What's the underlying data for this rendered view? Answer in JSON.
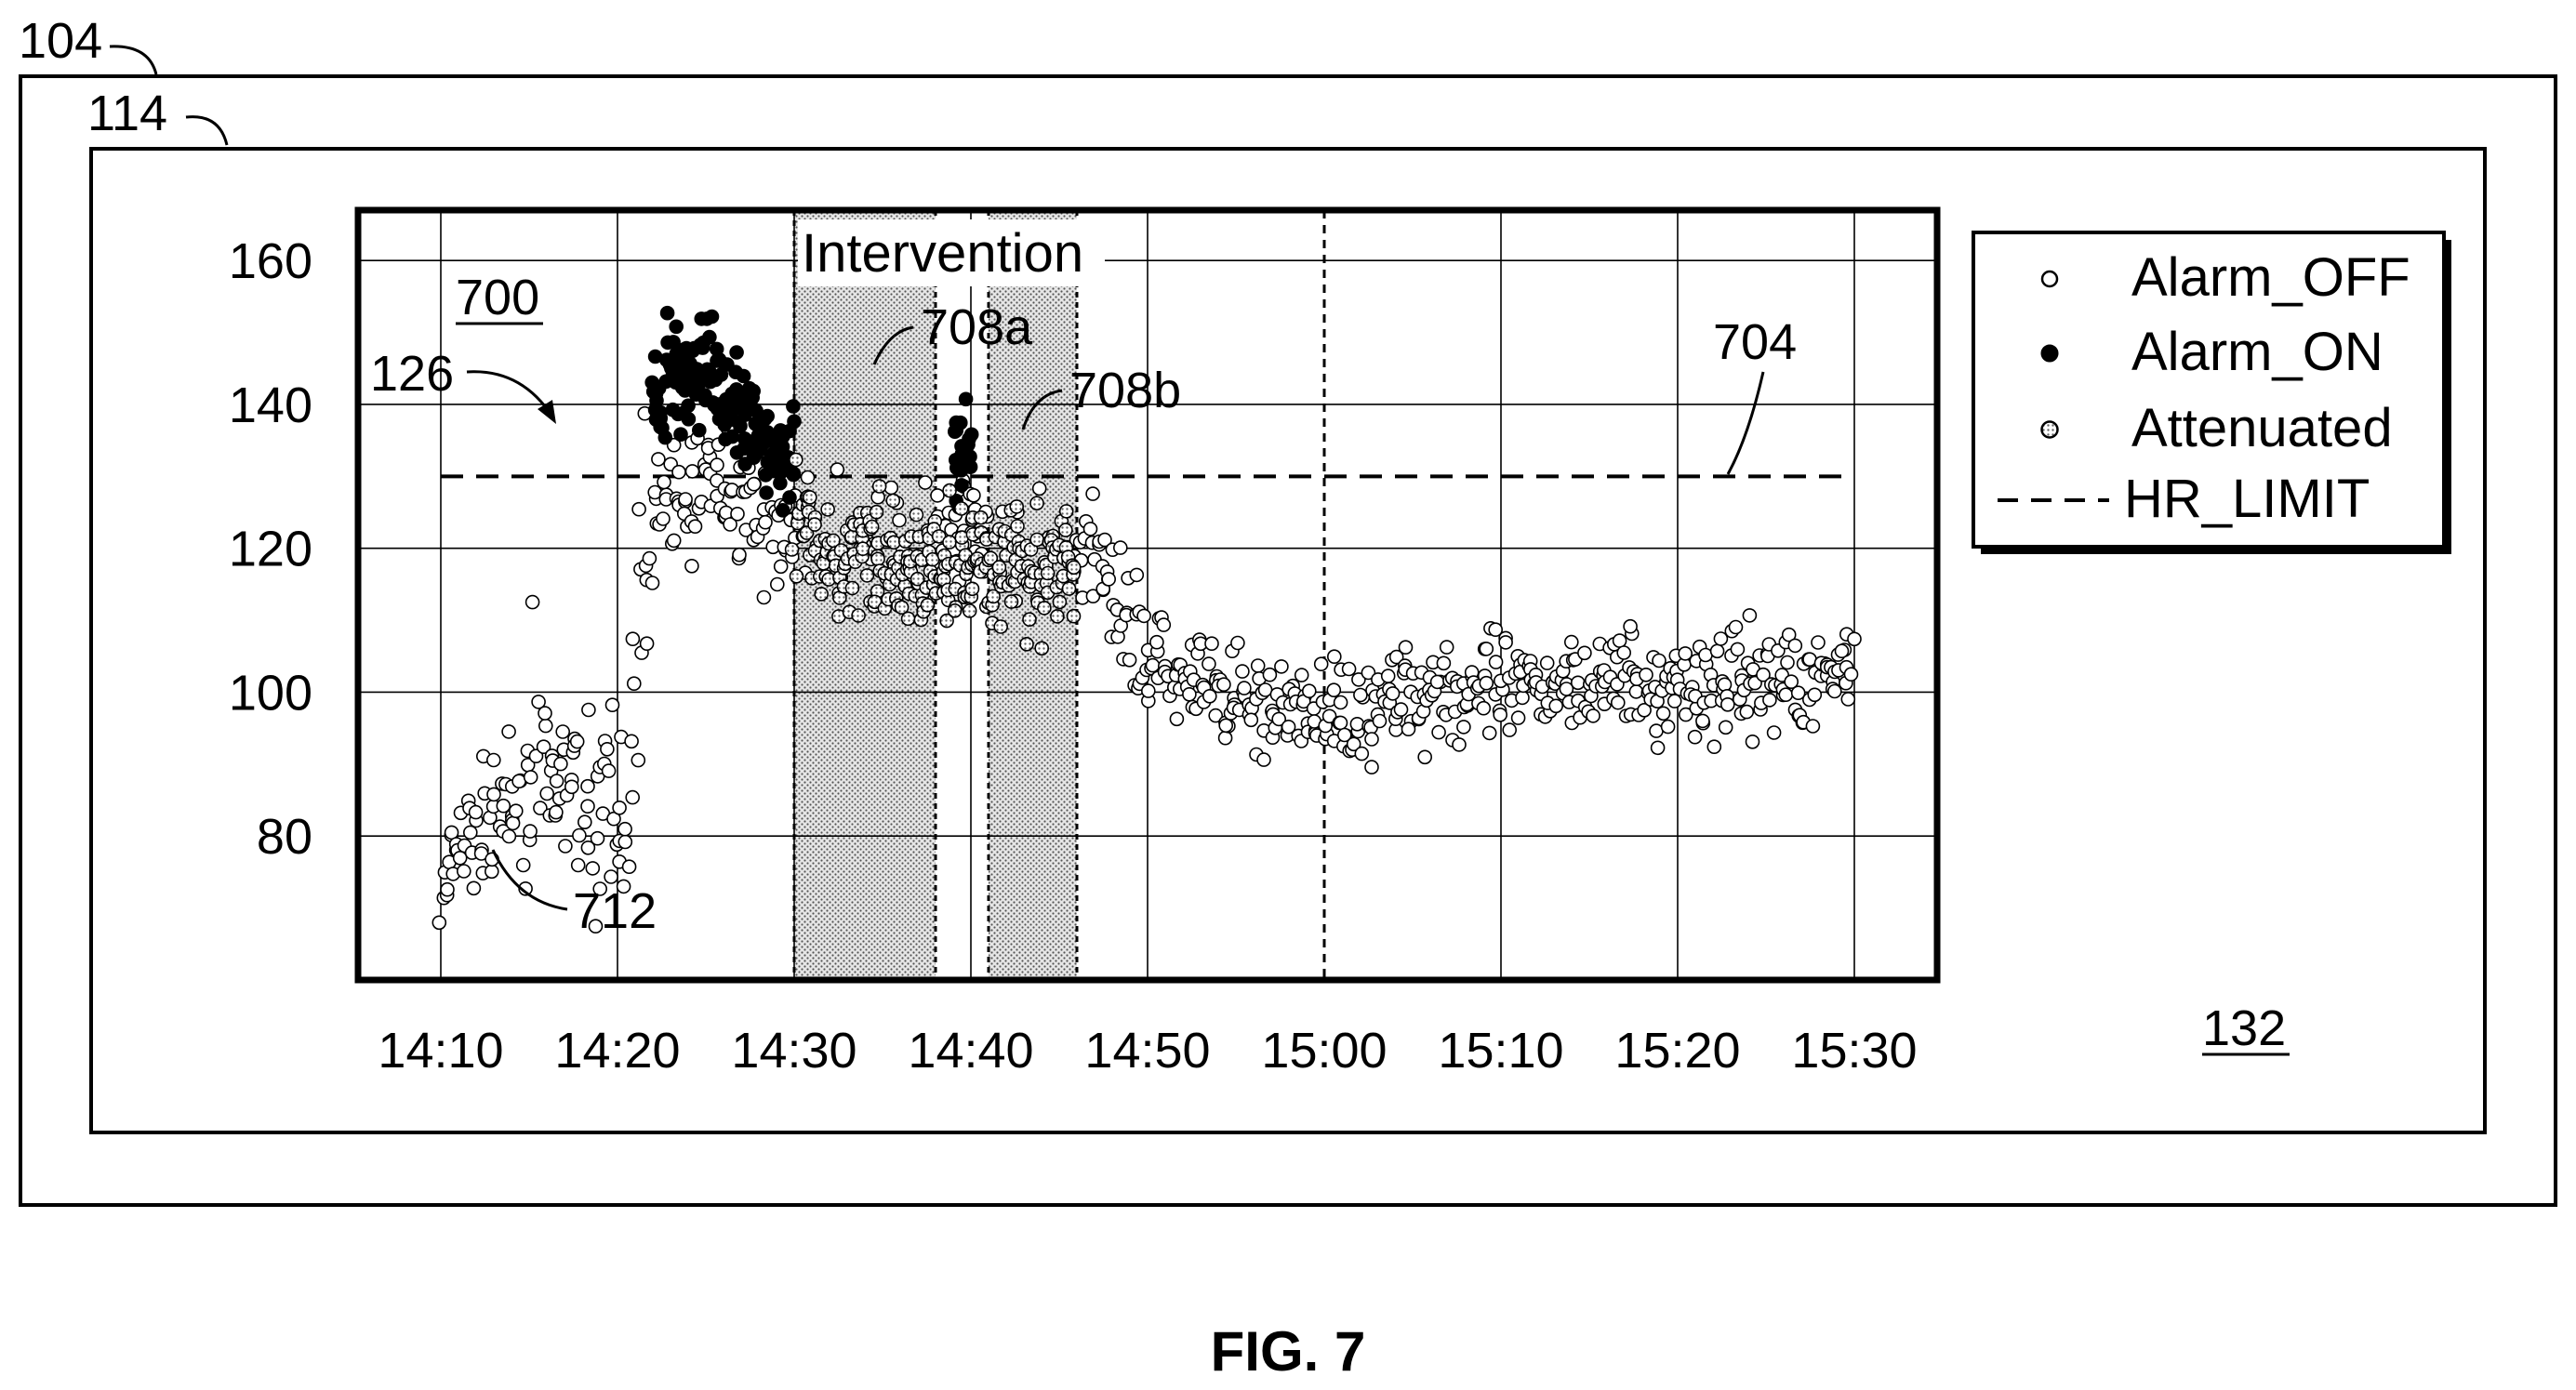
{
  "figure": {
    "caption": "FIG. 7",
    "refs": {
      "outer": "104",
      "display": "114",
      "plot": "700",
      "arrow": "126",
      "limit": "704",
      "region_a": "708a",
      "region_b": "708b",
      "trace": "712",
      "panel": "132"
    }
  },
  "chart_data": {
    "type": "scatter",
    "title": "",
    "xlabel": "",
    "ylabel": "",
    "x_ticks": [
      "14:10",
      "14:20",
      "14:30",
      "14:40",
      "14:50",
      "15:00",
      "15:10",
      "15:20",
      "15:30"
    ],
    "xlim": [
      "14:05",
      "14:35"
    ],
    "xlim_note": "",
    "y_ticks": [
      80,
      100,
      120,
      140,
      160
    ],
    "ylim": [
      60,
      167
    ],
    "grid": true,
    "legend_position": "right",
    "legend": [
      "Alarm_OFF",
      "Alarm_ON",
      "Attenuated",
      "HR_LIMIT"
    ],
    "annotation": "Intervention",
    "hr_limit": 130,
    "intervention_windows": [
      {
        "start": "14:30",
        "end": "14:38"
      },
      {
        "start": "14:41",
        "end": "14:46"
      }
    ],
    "series": [
      {
        "name": "Alarm_OFF",
        "marker": "open-circle",
        "trend": [
          [
            "14:10",
            70
          ],
          [
            "14:11",
            78
          ],
          [
            "14:12",
            80
          ],
          [
            "14:13",
            84
          ],
          [
            "14:14",
            86
          ],
          [
            "14:15",
            86
          ],
          [
            "14:16",
            87
          ],
          [
            "14:17",
            86
          ],
          [
            "14:18",
            86
          ],
          [
            "14:19",
            84
          ],
          [
            "14:20",
            84
          ],
          [
            "14:21",
            86
          ],
          [
            "14:22",
            126
          ],
          [
            "14:26",
            130
          ],
          [
            "14:28",
            124
          ],
          [
            "14:30",
            124
          ],
          [
            "14:46",
            120
          ],
          [
            "14:48",
            116
          ],
          [
            "14:50",
            104
          ],
          [
            "14:55",
            98
          ],
          [
            "15:00",
            97
          ],
          [
            "15:05",
            100
          ],
          [
            "15:10",
            100
          ],
          [
            "15:15",
            102
          ],
          [
            "15:20",
            101
          ],
          [
            "15:25",
            102
          ],
          [
            "15:30",
            103
          ]
        ]
      },
      {
        "name": "Alarm_ON",
        "marker": "filled-circle",
        "trend": [
          [
            "14:22",
            141
          ],
          [
            "14:23",
            144
          ],
          [
            "14:24",
            143
          ],
          [
            "14:25",
            144
          ],
          [
            "14:26",
            141
          ],
          [
            "14:27",
            139
          ],
          [
            "14:28",
            136
          ],
          [
            "14:29",
            133
          ],
          [
            "14:30",
            133
          ],
          [
            "14:40",
            134
          ]
        ]
      },
      {
        "name": "Attenuated",
        "marker": "dotted-circle",
        "trend": [
          [
            "14:30",
            122
          ],
          [
            "14:32",
            120
          ],
          [
            "14:34",
            118
          ],
          [
            "14:36",
            117
          ],
          [
            "14:38",
            116
          ],
          [
            "14:40",
            118
          ],
          [
            "14:42",
            118
          ],
          [
            "14:44",
            117
          ],
          [
            "14:46",
            118
          ]
        ]
      }
    ],
    "hr_limit_series": {
      "name": "HR_LIMIT",
      "y": 130
    }
  },
  "colors": {
    "ink": "#000000",
    "background": "#ffffff",
    "region_fill": "#bdbdbd"
  }
}
